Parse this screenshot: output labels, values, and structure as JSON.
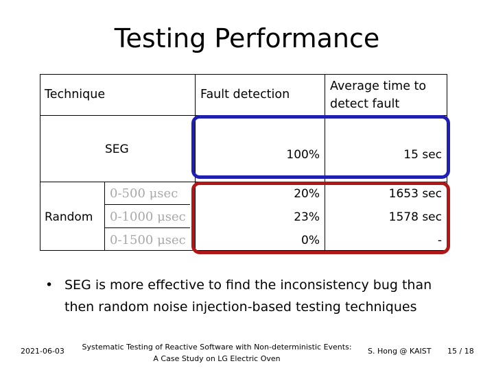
{
  "slide": {
    "title": "Testing Performance",
    "table": {
      "headers": {
        "technique": "Technique",
        "fault_detection": "Fault detection",
        "avg_time_line1": "Average time to",
        "avg_time_line2": "detect fault"
      },
      "seg_row": {
        "technique": "SEG",
        "fault_detection": "100%",
        "avg_time": "15 sec"
      },
      "random_group": {
        "technique": "Random",
        "rows": [
          {
            "sub": "0-500 μsec",
            "fault_detection": "20%",
            "avg_time": "1653 sec"
          },
          {
            "sub": "0-1000 μsec",
            "fault_detection": "23%",
            "avg_time": "1578 sec"
          },
          {
            "sub": "0-1500 μsec",
            "fault_detection": "0%",
            "avg_time": "-"
          }
        ]
      },
      "highlight_colors": {
        "seg_box": "#1f1fb0",
        "random_box": "#b01818"
      }
    },
    "bullet": "SEG is more effective to find the inconsistency bug than then random noise injection-based testing techniques",
    "footer": {
      "date": "2021-06-03",
      "citation_line1": "Systematic Testing of Reactive Software with Non-deterministic Events:",
      "citation_line2": "A Case Study on LG Electric Oven",
      "author": "S. Hong @ KAIST",
      "page": "15 / 18"
    }
  }
}
